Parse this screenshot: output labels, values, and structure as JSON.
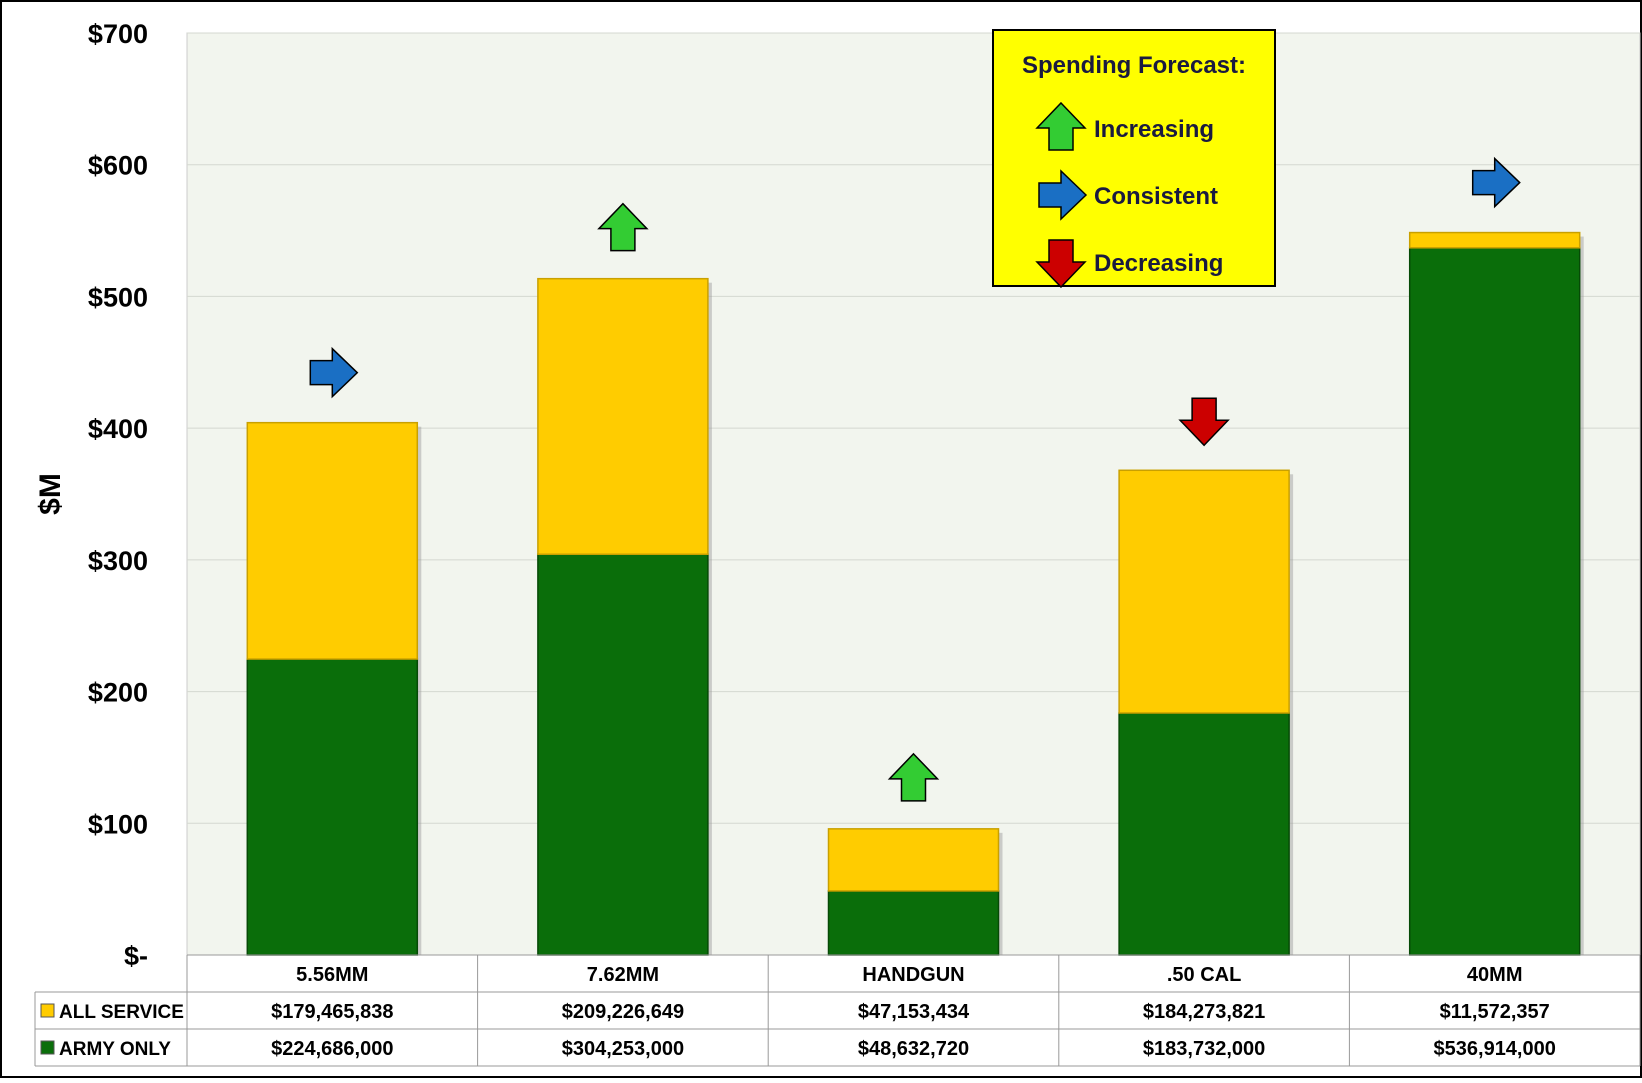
{
  "chart_data": {
    "type": "bar",
    "stacked": true,
    "ylabel": "$M",
    "ylim": [
      0,
      700
    ],
    "yticks": [
      {
        "value": 0,
        "label": "$-"
      },
      {
        "value": 100,
        "label": "$100"
      },
      {
        "value": 200,
        "label": "$200"
      },
      {
        "value": 300,
        "label": "$300"
      },
      {
        "value": 400,
        "label": "$400"
      },
      {
        "value": 500,
        "label": "$500"
      },
      {
        "value": 600,
        "label": "$600"
      },
      {
        "value": 700,
        "label": "$700"
      }
    ],
    "grid": true,
    "categories": [
      "5.56MM",
      "7.62MM",
      "HANDGUN",
      ".50 CAL",
      "40MM"
    ],
    "series": [
      {
        "name": "ARMY ONLY",
        "color": "#0a6e0a",
        "values": [
          224.686,
          304.253,
          48.63272,
          183.732,
          536.914
        ],
        "table_values": [
          "$224,686,000",
          "$304,253,000",
          "$48,632,720",
          "$183,732,000",
          "$536,914,000"
        ]
      },
      {
        "name": "ALL SERVICE",
        "color": "#ffcc00",
        "values": [
          179.465838,
          209.226649,
          47.153434,
          184.273821,
          11.572357
        ],
        "table_values": [
          "$179,465,838",
          "$209,226,649",
          "$47,153,434",
          "$184,273,821",
          "$11,572,357"
        ]
      }
    ],
    "forecast": [
      "consistent",
      "increasing",
      "increasing",
      "decreasing",
      "consistent"
    ],
    "legend": {
      "title": "Spending Forecast:",
      "background": "#ffff00",
      "items": [
        {
          "key": "increasing",
          "label": "Increasing",
          "color": "#33cc33"
        },
        {
          "key": "consistent",
          "label": "Consistent",
          "color": "#1a6fc4"
        },
        {
          "key": "decreasing",
          "label": "Decreasing",
          "color": "#cc0000"
        }
      ]
    },
    "plot_background": "#f2f5ee"
  }
}
